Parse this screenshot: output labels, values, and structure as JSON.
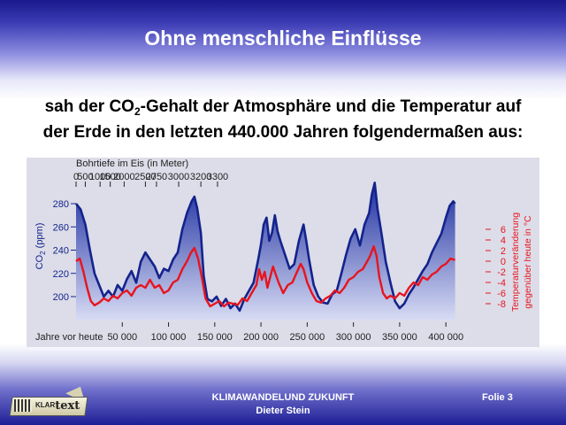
{
  "slide": {
    "title": "Ohne menschliche Einflüsse",
    "subtitle_line1_a": "sah der CO",
    "subtitle_line1_sub": "2",
    "subtitle_line1_b": "-Gehalt der Atmosphäre und die Temperatur auf",
    "subtitle_line2": "der Erde in den letzten 440.000 Jahren folgendermaßen aus:",
    "footer_line1": "KLIMAWANDELUND ZUKUNFT",
    "footer_line2": "Dieter Stein",
    "slide_number": "Folie 3",
    "logo": {
      "bars": "|||",
      "word": "KLARtext"
    }
  },
  "colors": {
    "co2": "#14238c",
    "co2_fill_top": "#1e2fa0",
    "co2_fill_bottom": "#d8dcf4",
    "temperature": "#e8141e",
    "left_axis_text": "#14238c",
    "right_axis_text": "#e8141e",
    "chart_background": "#dcdde8"
  },
  "chart_data": {
    "type": "line",
    "top_axis": {
      "title": "Bohrtiefe im Eis (in Meter)",
      "ticks": [
        {
          "label": "0",
          "x": 0
        },
        {
          "label": "500",
          "x": 10000
        },
        {
          "label": "1000",
          "x": 26000
        },
        {
          "label": "1500",
          "x": 37000
        },
        {
          "label": "2000",
          "x": 52000
        },
        {
          "label": "2500",
          "x": 75000
        },
        {
          "label": "2750",
          "x": 87000
        },
        {
          "label": "3000",
          "x": 111000
        },
        {
          "label": "3200",
          "x": 135000
        },
        {
          "label": "3300",
          "x": 153000
        }
      ]
    },
    "x_axis": {
      "label": "Jahre vor heute",
      "ticks": [
        {
          "label": "50 000",
          "x": 50000
        },
        {
          "label": "100 000",
          "x": 100000
        },
        {
          "label": "150 000",
          "x": 150000
        },
        {
          "label": "200 000",
          "x": 200000
        },
        {
          "label": "250 000",
          "x": 250000
        },
        {
          "label": "300 000",
          "x": 300000
        },
        {
          "label": "350 000",
          "x": 350000
        },
        {
          "label": "400 000",
          "x": 400000
        }
      ],
      "range": [
        0,
        440000
      ],
      "reversed": true
    },
    "left_axis": {
      "label_main": "CO",
      "label_sub": "2",
      "label_unit": " (ppm)",
      "ticks": [
        "200",
        "220",
        "240",
        "260",
        "280"
      ],
      "range": [
        170,
        295
      ]
    },
    "right_axis": {
      "label_line1": "Temperaturveränderung",
      "label_line2": "gegenüber heute in °C",
      "ticks": [
        "-8",
        "-6",
        "-4",
        "-2",
        "0",
        "2",
        "4",
        "6"
      ],
      "range": [
        -10.5,
        8.5
      ]
    },
    "series": [
      {
        "key": "co2",
        "axis": "left",
        "points": [
          [
            0,
            280
          ],
          [
            5000,
            275
          ],
          [
            10000,
            262
          ],
          [
            15000,
            240
          ],
          [
            20000,
            220
          ],
          [
            25000,
            210
          ],
          [
            30000,
            200
          ],
          [
            35000,
            205
          ],
          [
            40000,
            200
          ],
          [
            45000,
            210
          ],
          [
            50000,
            205
          ],
          [
            55000,
            215
          ],
          [
            60000,
            222
          ],
          [
            65000,
            212
          ],
          [
            70000,
            230
          ],
          [
            75000,
            238
          ],
          [
            80000,
            232
          ],
          [
            85000,
            226
          ],
          [
            90000,
            216
          ],
          [
            95000,
            224
          ],
          [
            100000,
            222
          ],
          [
            105000,
            232
          ],
          [
            110000,
            238
          ],
          [
            115000,
            258
          ],
          [
            120000,
            272
          ],
          [
            125000,
            282
          ],
          [
            128000,
            286
          ],
          [
            131000,
            276
          ],
          [
            135000,
            255
          ],
          [
            138000,
            218
          ],
          [
            142000,
            198
          ],
          [
            147000,
            196
          ],
          [
            152000,
            200
          ],
          [
            157000,
            192
          ],
          [
            162000,
            198
          ],
          [
            167000,
            190
          ],
          [
            172000,
            194
          ],
          [
            177000,
            188
          ],
          [
            182000,
            198
          ],
          [
            187000,
            205
          ],
          [
            192000,
            212
          ],
          [
            197000,
            232
          ],
          [
            200000,
            245
          ],
          [
            203000,
            262
          ],
          [
            206000,
            268
          ],
          [
            209000,
            248
          ],
          [
            212000,
            255
          ],
          [
            215000,
            270
          ],
          [
            218000,
            256
          ],
          [
            221000,
            248
          ],
          [
            226000,
            236
          ],
          [
            231000,
            224
          ],
          [
            236000,
            228
          ],
          [
            241000,
            248
          ],
          [
            246000,
            262
          ],
          [
            249000,
            248
          ],
          [
            252000,
            232
          ],
          [
            257000,
            210
          ],
          [
            262000,
            200
          ],
          [
            267000,
            195
          ],
          [
            272000,
            194
          ],
          [
            277000,
            202
          ],
          [
            282000,
            205
          ],
          [
            287000,
            220
          ],
          [
            292000,
            236
          ],
          [
            297000,
            250
          ],
          [
            302000,
            258
          ],
          [
            307000,
            244
          ],
          [
            312000,
            262
          ],
          [
            317000,
            272
          ],
          [
            320000,
            288
          ],
          [
            323000,
            298
          ],
          [
            326000,
            276
          ],
          [
            330000,
            256
          ],
          [
            335000,
            230
          ],
          [
            340000,
            212
          ],
          [
            345000,
            196
          ],
          [
            350000,
            190
          ],
          [
            355000,
            194
          ],
          [
            360000,
            202
          ],
          [
            365000,
            208
          ],
          [
            370000,
            215
          ],
          [
            375000,
            222
          ],
          [
            380000,
            228
          ],
          [
            385000,
            238
          ],
          [
            390000,
            246
          ],
          [
            395000,
            254
          ],
          [
            400000,
            268
          ],
          [
            404000,
            278
          ],
          [
            408000,
            282
          ],
          [
            410000,
            280
          ]
        ]
      },
      {
        "key": "temperature",
        "axis": "right",
        "points": [
          [
            0,
            0
          ],
          [
            4000,
            0.5
          ],
          [
            8000,
            -2
          ],
          [
            12000,
            -5
          ],
          [
            16000,
            -7.5
          ],
          [
            20000,
            -8.3
          ],
          [
            25000,
            -7.8
          ],
          [
            30000,
            -7
          ],
          [
            35000,
            -7.5
          ],
          [
            40000,
            -6.5
          ],
          [
            45000,
            -7
          ],
          [
            50000,
            -6
          ],
          [
            55000,
            -5.5
          ],
          [
            60000,
            -6.5
          ],
          [
            65000,
            -5
          ],
          [
            70000,
            -4.5
          ],
          [
            75000,
            -5
          ],
          [
            80000,
            -3.5
          ],
          [
            85000,
            -5
          ],
          [
            90000,
            -4.5
          ],
          [
            95000,
            -6
          ],
          [
            100000,
            -5.5
          ],
          [
            105000,
            -4
          ],
          [
            110000,
            -3.5
          ],
          [
            115000,
            -1.5
          ],
          [
            120000,
            0
          ],
          [
            124000,
            1.5
          ],
          [
            128000,
            2.5
          ],
          [
            132000,
            0.5
          ],
          [
            136000,
            -3
          ],
          [
            140000,
            -7
          ],
          [
            145000,
            -8.5
          ],
          [
            150000,
            -8
          ],
          [
            155000,
            -7.5
          ],
          [
            160000,
            -8.5
          ],
          [
            165000,
            -7.8
          ],
          [
            170000,
            -8
          ],
          [
            175000,
            -8.2
          ],
          [
            180000,
            -7
          ],
          [
            185000,
            -7.5
          ],
          [
            190000,
            -6
          ],
          [
            195000,
            -4.5
          ],
          [
            198000,
            -1.5
          ],
          [
            201000,
            -3.5
          ],
          [
            204000,
            -2
          ],
          [
            207000,
            -5
          ],
          [
            210000,
            -3
          ],
          [
            213000,
            -1
          ],
          [
            216000,
            -2.5
          ],
          [
            219000,
            -4
          ],
          [
            224000,
            -6
          ],
          [
            229000,
            -4.5
          ],
          [
            234000,
            -4
          ],
          [
            239000,
            -2
          ],
          [
            243000,
            -0.5
          ],
          [
            246000,
            -1.5
          ],
          [
            250000,
            -4
          ],
          [
            255000,
            -6
          ],
          [
            260000,
            -7.5
          ],
          [
            265000,
            -7.8
          ],
          [
            270000,
            -7
          ],
          [
            275000,
            -6.5
          ],
          [
            280000,
            -5.5
          ],
          [
            285000,
            -6
          ],
          [
            290000,
            -5
          ],
          [
            295000,
            -3.5
          ],
          [
            300000,
            -3
          ],
          [
            305000,
            -2
          ],
          [
            310000,
            -1.5
          ],
          [
            315000,
            0
          ],
          [
            318000,
            1
          ],
          [
            322000,
            2.8
          ],
          [
            325000,
            1
          ],
          [
            328000,
            -3
          ],
          [
            332000,
            -6
          ],
          [
            336000,
            -7
          ],
          [
            340000,
            -6.5
          ],
          [
            345000,
            -7
          ],
          [
            350000,
            -6
          ],
          [
            355000,
            -6.5
          ],
          [
            360000,
            -5
          ],
          [
            365000,
            -4
          ],
          [
            370000,
            -4.5
          ],
          [
            375000,
            -3
          ],
          [
            380000,
            -3.5
          ],
          [
            385000,
            -2.5
          ],
          [
            390000,
            -2
          ],
          [
            395000,
            -1
          ],
          [
            400000,
            -0.5
          ],
          [
            405000,
            0.5
          ],
          [
            410000,
            0.2
          ]
        ]
      }
    ]
  }
}
